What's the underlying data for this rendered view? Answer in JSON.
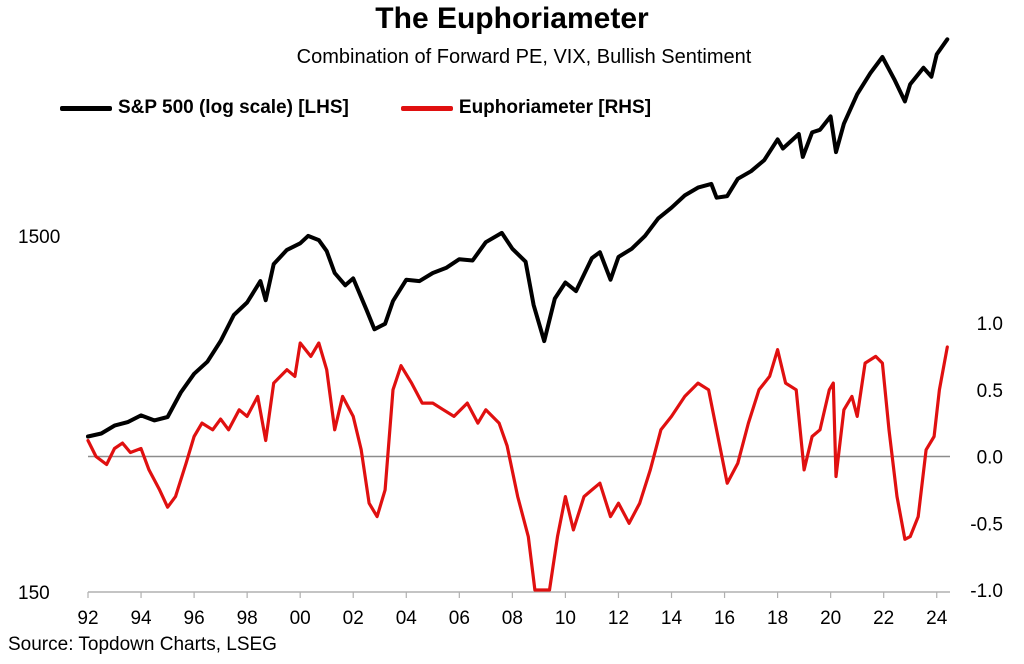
{
  "title": "The Euphoriameter",
  "subtitle": "Combination of Forward PE, VIX, Bullish Sentiment",
  "source": "Source: Topdown Charts, LSEG",
  "legend": [
    {
      "label": "S&P 500 (log scale) [LHS]",
      "color": "#000000"
    },
    {
      "label": "Euphoriameter [RHS]",
      "color": "#e01010"
    }
  ],
  "chart_data": {
    "type": "line",
    "xlim": [
      1992,
      2024.5
    ],
    "x_ticks": [
      1992,
      1994,
      1996,
      1998,
      2000,
      2002,
      2004,
      2006,
      2008,
      2010,
      2012,
      2014,
      2016,
      2018,
      2020,
      2022,
      2024
    ],
    "x_tick_labels": [
      "92",
      "94",
      "96",
      "98",
      "00",
      "02",
      "04",
      "06",
      "08",
      "10",
      "12",
      "14",
      "16",
      "18",
      "20",
      "22",
      "24"
    ],
    "left_axis": {
      "scale": "log",
      "ylim": [
        150,
        5500
      ],
      "ticks": [
        150,
        1500
      ],
      "tick_labels": [
        "150",
        "1500"
      ]
    },
    "right_axis": {
      "scale": "linear",
      "ylim": [
        -1.0,
        1.0
      ],
      "ticks": [
        1.0,
        0.5,
        0.0,
        -0.5,
        -1.0
      ],
      "tick_labels": [
        "1.0",
        "0.5",
        "0.0",
        "-0.5",
        "-1.0"
      ]
    },
    "zero_line": true,
    "grid": false,
    "legend_position": "top-left",
    "series": [
      {
        "name": "S&P 500 (log scale) [LHS]",
        "axis": "left",
        "color": "#000000",
        "points": [
          [
            1992.0,
            410
          ],
          [
            1992.5,
            418
          ],
          [
            1993.0,
            440
          ],
          [
            1993.5,
            450
          ],
          [
            1994.0,
            470
          ],
          [
            1994.5,
            455
          ],
          [
            1995.0,
            465
          ],
          [
            1995.5,
            545
          ],
          [
            1996.0,
            615
          ],
          [
            1996.5,
            665
          ],
          [
            1997.0,
            760
          ],
          [
            1997.5,
            900
          ],
          [
            1998.0,
            975
          ],
          [
            1998.5,
            1120
          ],
          [
            1998.7,
            990
          ],
          [
            1999.0,
            1250
          ],
          [
            1999.5,
            1370
          ],
          [
            2000.0,
            1430
          ],
          [
            2000.3,
            1500
          ],
          [
            2000.7,
            1460
          ],
          [
            2001.0,
            1360
          ],
          [
            2001.3,
            1180
          ],
          [
            2001.7,
            1090
          ],
          [
            2002.0,
            1140
          ],
          [
            2002.5,
            930
          ],
          [
            2002.8,
            820
          ],
          [
            2003.2,
            850
          ],
          [
            2003.5,
            985
          ],
          [
            2004.0,
            1130
          ],
          [
            2004.5,
            1120
          ],
          [
            2005.0,
            1180
          ],
          [
            2005.5,
            1220
          ],
          [
            2006.0,
            1290
          ],
          [
            2006.5,
            1280
          ],
          [
            2007.0,
            1440
          ],
          [
            2007.6,
            1530
          ],
          [
            2008.0,
            1380
          ],
          [
            2008.5,
            1270
          ],
          [
            2008.8,
            960
          ],
          [
            2009.2,
            760
          ],
          [
            2009.6,
            1000
          ],
          [
            2010.0,
            1110
          ],
          [
            2010.4,
            1050
          ],
          [
            2011.0,
            1300
          ],
          [
            2011.3,
            1350
          ],
          [
            2011.7,
            1130
          ],
          [
            2012.0,
            1310
          ],
          [
            2012.5,
            1380
          ],
          [
            2013.0,
            1500
          ],
          [
            2013.5,
            1680
          ],
          [
            2014.0,
            1800
          ],
          [
            2014.5,
            1950
          ],
          [
            2015.0,
            2050
          ],
          [
            2015.5,
            2100
          ],
          [
            2015.7,
            1920
          ],
          [
            2016.1,
            1940
          ],
          [
            2016.5,
            2170
          ],
          [
            2017.0,
            2280
          ],
          [
            2017.5,
            2450
          ],
          [
            2018.0,
            2800
          ],
          [
            2018.2,
            2640
          ],
          [
            2018.8,
            2900
          ],
          [
            2018.95,
            2500
          ],
          [
            2019.3,
            2930
          ],
          [
            2019.6,
            2980
          ],
          [
            2020.0,
            3250
          ],
          [
            2020.2,
            2580
          ],
          [
            2020.5,
            3100
          ],
          [
            2021.0,
            3750
          ],
          [
            2021.5,
            4300
          ],
          [
            2021.95,
            4770
          ],
          [
            2022.4,
            4130
          ],
          [
            2022.8,
            3580
          ],
          [
            2023.0,
            4000
          ],
          [
            2023.5,
            4450
          ],
          [
            2023.8,
            4200
          ],
          [
            2024.0,
            4850
          ],
          [
            2024.4,
            5350
          ]
        ]
      },
      {
        "name": "Euphoriameter [RHS]",
        "axis": "right",
        "color": "#e01010",
        "points": [
          [
            1992.0,
            0.12
          ],
          [
            1992.3,
            0.0
          ],
          [
            1992.7,
            -0.06
          ],
          [
            1993.0,
            0.06
          ],
          [
            1993.3,
            0.1
          ],
          [
            1993.6,
            0.03
          ],
          [
            1994.0,
            0.06
          ],
          [
            1994.3,
            -0.1
          ],
          [
            1994.7,
            -0.25
          ],
          [
            1995.0,
            -0.38
          ],
          [
            1995.3,
            -0.3
          ],
          [
            1995.7,
            -0.05
          ],
          [
            1996.0,
            0.15
          ],
          [
            1996.3,
            0.25
          ],
          [
            1996.7,
            0.2
          ],
          [
            1997.0,
            0.28
          ],
          [
            1997.3,
            0.2
          ],
          [
            1997.7,
            0.35
          ],
          [
            1998.0,
            0.3
          ],
          [
            1998.4,
            0.45
          ],
          [
            1998.7,
            0.12
          ],
          [
            1999.0,
            0.55
          ],
          [
            1999.5,
            0.65
          ],
          [
            1999.8,
            0.6
          ],
          [
            2000.0,
            0.85
          ],
          [
            2000.4,
            0.75
          ],
          [
            2000.7,
            0.85
          ],
          [
            2001.0,
            0.65
          ],
          [
            2001.3,
            0.2
          ],
          [
            2001.6,
            0.45
          ],
          [
            2002.0,
            0.3
          ],
          [
            2002.3,
            0.05
          ],
          [
            2002.6,
            -0.35
          ],
          [
            2002.9,
            -0.45
          ],
          [
            2003.2,
            -0.25
          ],
          [
            2003.5,
            0.5
          ],
          [
            2003.8,
            0.68
          ],
          [
            2004.2,
            0.55
          ],
          [
            2004.6,
            0.4
          ],
          [
            2005.0,
            0.4
          ],
          [
            2005.4,
            0.35
          ],
          [
            2005.8,
            0.3
          ],
          [
            2006.3,
            0.4
          ],
          [
            2006.7,
            0.25
          ],
          [
            2007.0,
            0.35
          ],
          [
            2007.5,
            0.25
          ],
          [
            2007.8,
            0.08
          ],
          [
            2008.2,
            -0.3
          ],
          [
            2008.6,
            -0.6
          ],
          [
            2008.85,
            -1.0
          ],
          [
            2009.4,
            -1.0
          ],
          [
            2009.7,
            -0.6
          ],
          [
            2010.0,
            -0.3
          ],
          [
            2010.3,
            -0.55
          ],
          [
            2010.7,
            -0.3
          ],
          [
            2011.0,
            -0.25
          ],
          [
            2011.3,
            -0.2
          ],
          [
            2011.7,
            -0.45
          ],
          [
            2012.0,
            -0.35
          ],
          [
            2012.4,
            -0.5
          ],
          [
            2012.8,
            -0.35
          ],
          [
            2013.2,
            -0.1
          ],
          [
            2013.6,
            0.2
          ],
          [
            2014.0,
            0.3
          ],
          [
            2014.5,
            0.45
          ],
          [
            2015.0,
            0.55
          ],
          [
            2015.4,
            0.5
          ],
          [
            2015.8,
            0.1
          ],
          [
            2016.1,
            -0.2
          ],
          [
            2016.5,
            -0.05
          ],
          [
            2016.9,
            0.25
          ],
          [
            2017.3,
            0.5
          ],
          [
            2017.7,
            0.6
          ],
          [
            2018.0,
            0.8
          ],
          [
            2018.3,
            0.55
          ],
          [
            2018.7,
            0.5
          ],
          [
            2019.0,
            -0.1
          ],
          [
            2019.3,
            0.15
          ],
          [
            2019.6,
            0.2
          ],
          [
            2019.95,
            0.5
          ],
          [
            2020.1,
            0.55
          ],
          [
            2020.2,
            -0.15
          ],
          [
            2020.5,
            0.35
          ],
          [
            2020.8,
            0.45
          ],
          [
            2021.0,
            0.3
          ],
          [
            2021.3,
            0.7
          ],
          [
            2021.7,
            0.75
          ],
          [
            2021.95,
            0.7
          ],
          [
            2022.2,
            0.2
          ],
          [
            2022.5,
            -0.3
          ],
          [
            2022.8,
            -0.62
          ],
          [
            2023.0,
            -0.6
          ],
          [
            2023.3,
            -0.45
          ],
          [
            2023.6,
            0.05
          ],
          [
            2023.9,
            0.15
          ],
          [
            2024.1,
            0.5
          ],
          [
            2024.4,
            0.82
          ]
        ]
      }
    ]
  }
}
